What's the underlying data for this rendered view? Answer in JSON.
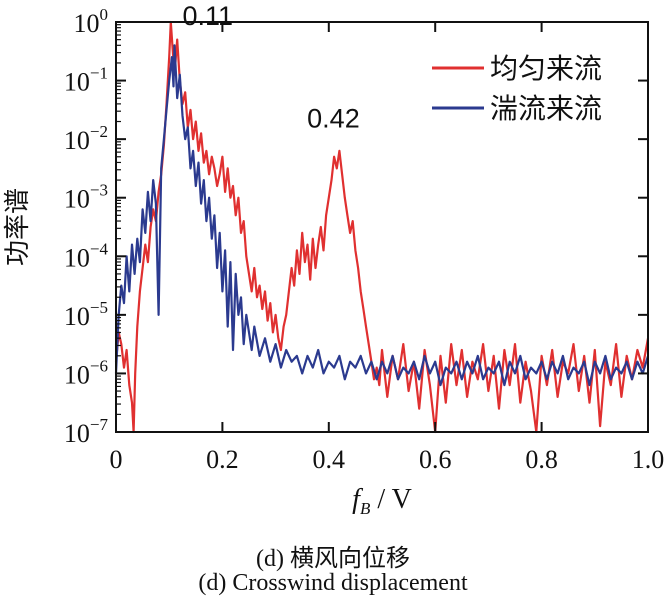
{
  "chart_data": {
    "type": "line",
    "ylabel": "功率谱",
    "xlabel_main": "f",
    "xlabel_sub": "B",
    "xlabel_unit": " / V",
    "xlim": [
      0,
      1.0
    ],
    "ylim_log10": [
      -7,
      0
    ],
    "y_scale": "log",
    "x_ticks": [
      "0",
      "0.2",
      "0.4",
      "0.6",
      "0.8",
      "1.0"
    ],
    "x_tick_values": [
      0,
      0.2,
      0.4,
      0.6,
      0.8,
      1.0
    ],
    "y_tick_exponents": [
      0,
      -1,
      -2,
      -3,
      -4,
      -5,
      -6,
      -7
    ],
    "y_tick_base": "10",
    "y_tick_exps_text": [
      "0",
      "−1",
      "−2",
      "−3",
      "−4",
      "−5",
      "−6",
      "−7"
    ],
    "grid": false,
    "legend_position": "top-right",
    "annotations": [
      {
        "text": "0.11",
        "x": 0.11,
        "y_log10": -0.05
      },
      {
        "text": "0.42",
        "x": 0.42,
        "y_log10": -1.8
      }
    ],
    "series": [
      {
        "name": "均匀来流",
        "color": "#e03030",
        "points": [
          [
            0.0,
            -5.8
          ],
          [
            0.005,
            -5.3
          ],
          [
            0.01,
            -5.5
          ],
          [
            0.015,
            -5.9
          ],
          [
            0.02,
            -5.6
          ],
          [
            0.025,
            -6.2
          ],
          [
            0.03,
            -6.5
          ],
          [
            0.033,
            -7.0
          ],
          [
            0.036,
            -6.0
          ],
          [
            0.04,
            -5.2
          ],
          [
            0.045,
            -4.6
          ],
          [
            0.05,
            -4.2
          ],
          [
            0.055,
            -3.8
          ],
          [
            0.06,
            -4.1
          ],
          [
            0.065,
            -3.5
          ],
          [
            0.07,
            -3.2
          ],
          [
            0.075,
            -3.4
          ],
          [
            0.08,
            -2.9
          ],
          [
            0.085,
            -2.6
          ],
          [
            0.09,
            -2.1
          ],
          [
            0.095,
            -1.4
          ],
          [
            0.1,
            -0.6
          ],
          [
            0.103,
            0.0
          ],
          [
            0.106,
            -0.4
          ],
          [
            0.11,
            -0.9
          ],
          [
            0.115,
            -0.3
          ],
          [
            0.12,
            -1.0
          ],
          [
            0.125,
            -1.4
          ],
          [
            0.13,
            -1.2
          ],
          [
            0.135,
            -1.8
          ],
          [
            0.14,
            -1.5
          ],
          [
            0.145,
            -2.0
          ],
          [
            0.15,
            -1.7
          ],
          [
            0.155,
            -2.2
          ],
          [
            0.16,
            -1.9
          ],
          [
            0.165,
            -2.4
          ],
          [
            0.17,
            -2.2
          ],
          [
            0.175,
            -2.6
          ],
          [
            0.18,
            -2.3
          ],
          [
            0.185,
            -2.5
          ],
          [
            0.19,
            -2.8
          ],
          [
            0.195,
            -2.6
          ],
          [
            0.2,
            -2.3
          ],
          [
            0.205,
            -2.9
          ],
          [
            0.21,
            -2.5
          ],
          [
            0.215,
            -3.0
          ],
          [
            0.22,
            -2.8
          ],
          [
            0.225,
            -3.3
          ],
          [
            0.23,
            -3.0
          ],
          [
            0.235,
            -3.6
          ],
          [
            0.24,
            -3.4
          ],
          [
            0.245,
            -4.0
          ],
          [
            0.25,
            -4.3
          ],
          [
            0.255,
            -4.6
          ],
          [
            0.26,
            -4.2
          ],
          [
            0.265,
            -4.7
          ],
          [
            0.27,
            -4.5
          ],
          [
            0.275,
            -4.9
          ],
          [
            0.28,
            -4.6
          ],
          [
            0.285,
            -5.1
          ],
          [
            0.29,
            -4.8
          ],
          [
            0.295,
            -5.3
          ],
          [
            0.3,
            -5.0
          ],
          [
            0.305,
            -5.4
          ],
          [
            0.31,
            -5.6
          ],
          [
            0.315,
            -5.2
          ],
          [
            0.32,
            -5.0
          ],
          [
            0.325,
            -4.6
          ],
          [
            0.33,
            -4.2
          ],
          [
            0.335,
            -4.5
          ],
          [
            0.34,
            -3.9
          ],
          [
            0.345,
            -4.3
          ],
          [
            0.35,
            -3.6
          ],
          [
            0.355,
            -4.1
          ],
          [
            0.36,
            -3.8
          ],
          [
            0.365,
            -4.4
          ],
          [
            0.37,
            -3.7
          ],
          [
            0.375,
            -4.2
          ],
          [
            0.38,
            -3.8
          ],
          [
            0.385,
            -3.5
          ],
          [
            0.39,
            -3.9
          ],
          [
            0.395,
            -3.3
          ],
          [
            0.4,
            -3.0
          ],
          [
            0.405,
            -2.7
          ],
          [
            0.41,
            -2.3
          ],
          [
            0.415,
            -2.5
          ],
          [
            0.42,
            -2.2
          ],
          [
            0.425,
            -2.6
          ],
          [
            0.43,
            -3.0
          ],
          [
            0.435,
            -3.3
          ],
          [
            0.44,
            -3.6
          ],
          [
            0.445,
            -3.4
          ],
          [
            0.45,
            -3.9
          ],
          [
            0.455,
            -4.2
          ],
          [
            0.46,
            -4.6
          ],
          [
            0.465,
            -4.9
          ],
          [
            0.47,
            -5.2
          ],
          [
            0.475,
            -5.5
          ],
          [
            0.48,
            -5.8
          ],
          [
            0.485,
            -6.1
          ],
          [
            0.49,
            -5.9
          ],
          [
            0.495,
            -6.2
          ],
          [
            0.5,
            -5.6
          ],
          [
            0.51,
            -6.4
          ],
          [
            0.52,
            -5.7
          ],
          [
            0.53,
            -6.1
          ],
          [
            0.54,
            -5.5
          ],
          [
            0.55,
            -6.3
          ],
          [
            0.56,
            -5.8
          ],
          [
            0.57,
            -6.6
          ],
          [
            0.58,
            -5.6
          ],
          [
            0.59,
            -6.2
          ],
          [
            0.6,
            -7.0
          ],
          [
            0.61,
            -5.7
          ],
          [
            0.62,
            -6.5
          ],
          [
            0.63,
            -5.5
          ],
          [
            0.64,
            -6.2
          ],
          [
            0.65,
            -5.6
          ],
          [
            0.66,
            -6.4
          ],
          [
            0.67,
            -5.8
          ],
          [
            0.68,
            -6.1
          ],
          [
            0.69,
            -5.5
          ],
          [
            0.7,
            -6.3
          ],
          [
            0.71,
            -5.7
          ],
          [
            0.72,
            -6.6
          ],
          [
            0.73,
            -5.6
          ],
          [
            0.74,
            -6.2
          ],
          [
            0.75,
            -5.5
          ],
          [
            0.76,
            -6.5
          ],
          [
            0.77,
            -5.8
          ],
          [
            0.78,
            -6.3
          ],
          [
            0.79,
            -7.0
          ],
          [
            0.8,
            -5.7
          ],
          [
            0.81,
            -6.2
          ],
          [
            0.82,
            -5.6
          ],
          [
            0.83,
            -6.4
          ],
          [
            0.84,
            -5.8
          ],
          [
            0.85,
            -6.0
          ],
          [
            0.86,
            -5.5
          ],
          [
            0.87,
            -6.3
          ],
          [
            0.88,
            -5.7
          ],
          [
            0.89,
            -6.5
          ],
          [
            0.9,
            -5.6
          ],
          [
            0.91,
            -6.9
          ],
          [
            0.92,
            -5.8
          ],
          [
            0.93,
            -6.2
          ],
          [
            0.94,
            -5.5
          ],
          [
            0.95,
            -6.4
          ],
          [
            0.96,
            -5.7
          ],
          [
            0.97,
            -6.1
          ],
          [
            0.98,
            -5.6
          ],
          [
            0.99,
            -5.9
          ],
          [
            1.0,
            -5.4
          ]
        ]
      },
      {
        "name": "湍流来流",
        "color": "#2b3a8f",
        "points": [
          [
            0.0,
            -6.0
          ],
          [
            0.005,
            -5.0
          ],
          [
            0.01,
            -4.5
          ],
          [
            0.015,
            -4.8
          ],
          [
            0.02,
            -4.0
          ],
          [
            0.025,
            -4.6
          ],
          [
            0.03,
            -3.8
          ],
          [
            0.035,
            -4.3
          ],
          [
            0.04,
            -3.7
          ],
          [
            0.045,
            -4.1
          ],
          [
            0.05,
            -3.2
          ],
          [
            0.055,
            -3.6
          ],
          [
            0.06,
            -2.9
          ],
          [
            0.065,
            -3.4
          ],
          [
            0.07,
            -2.7
          ],
          [
            0.075,
            -3.1
          ],
          [
            0.08,
            -5.0
          ],
          [
            0.085,
            -2.5
          ],
          [
            0.09,
            -2.0
          ],
          [
            0.095,
            -1.5
          ],
          [
            0.1,
            -1.0
          ],
          [
            0.105,
            -0.6
          ],
          [
            0.108,
            -1.1
          ],
          [
            0.11,
            -0.4
          ],
          [
            0.115,
            -1.3
          ],
          [
            0.12,
            -0.9
          ],
          [
            0.125,
            -1.6
          ],
          [
            0.13,
            -2.0
          ],
          [
            0.135,
            -1.8
          ],
          [
            0.14,
            -2.5
          ],
          [
            0.145,
            -2.2
          ],
          [
            0.15,
            -2.8
          ],
          [
            0.155,
            -2.4
          ],
          [
            0.16,
            -3.1
          ],
          [
            0.165,
            -2.7
          ],
          [
            0.17,
            -3.4
          ],
          [
            0.175,
            -3.0
          ],
          [
            0.18,
            -3.7
          ],
          [
            0.185,
            -3.3
          ],
          [
            0.19,
            -4.2
          ],
          [
            0.195,
            -3.6
          ],
          [
            0.2,
            -4.6
          ],
          [
            0.205,
            -3.9
          ],
          [
            0.21,
            -5.2
          ],
          [
            0.215,
            -4.1
          ],
          [
            0.22,
            -5.6
          ],
          [
            0.225,
            -4.3
          ],
          [
            0.23,
            -5.0
          ],
          [
            0.235,
            -4.7
          ],
          [
            0.24,
            -5.5
          ],
          [
            0.245,
            -5.0
          ],
          [
            0.25,
            -5.3
          ],
          [
            0.255,
            -5.6
          ],
          [
            0.26,
            -5.2
          ],
          [
            0.27,
            -5.7
          ],
          [
            0.28,
            -5.4
          ],
          [
            0.29,
            -5.8
          ],
          [
            0.3,
            -5.5
          ],
          [
            0.31,
            -5.9
          ],
          [
            0.32,
            -5.6
          ],
          [
            0.33,
            -5.8
          ],
          [
            0.34,
            -5.7
          ],
          [
            0.35,
            -6.0
          ],
          [
            0.36,
            -5.7
          ],
          [
            0.37,
            -5.9
          ],
          [
            0.38,
            -5.6
          ],
          [
            0.39,
            -6.0
          ],
          [
            0.4,
            -5.8
          ],
          [
            0.41,
            -5.9
          ],
          [
            0.42,
            -5.7
          ],
          [
            0.43,
            -6.1
          ],
          [
            0.44,
            -5.8
          ],
          [
            0.45,
            -5.9
          ],
          [
            0.46,
            -5.7
          ],
          [
            0.47,
            -6.0
          ],
          [
            0.48,
            -5.8
          ],
          [
            0.49,
            -6.1
          ],
          [
            0.5,
            -5.8
          ],
          [
            0.51,
            -6.0
          ],
          [
            0.52,
            -5.7
          ],
          [
            0.53,
            -6.1
          ],
          [
            0.54,
            -5.9
          ],
          [
            0.55,
            -6.0
          ],
          [
            0.56,
            -5.8
          ],
          [
            0.57,
            -6.1
          ],
          [
            0.58,
            -5.7
          ],
          [
            0.59,
            -6.0
          ],
          [
            0.6,
            -5.8
          ],
          [
            0.61,
            -6.2
          ],
          [
            0.62,
            -5.9
          ],
          [
            0.63,
            -6.0
          ],
          [
            0.64,
            -5.8
          ],
          [
            0.65,
            -6.1
          ],
          [
            0.66,
            -5.8
          ],
          [
            0.67,
            -6.0
          ],
          [
            0.68,
            -5.7
          ],
          [
            0.69,
            -6.1
          ],
          [
            0.7,
            -5.9
          ],
          [
            0.71,
            -6.0
          ],
          [
            0.72,
            -5.8
          ],
          [
            0.73,
            -6.2
          ],
          [
            0.74,
            -5.8
          ],
          [
            0.75,
            -6.0
          ],
          [
            0.76,
            -5.7
          ],
          [
            0.77,
            -6.1
          ],
          [
            0.78,
            -5.9
          ],
          [
            0.79,
            -6.0
          ],
          [
            0.8,
            -5.8
          ],
          [
            0.81,
            -6.1
          ],
          [
            0.82,
            -5.8
          ],
          [
            0.83,
            -6.0
          ],
          [
            0.84,
            -5.7
          ],
          [
            0.85,
            -6.1
          ],
          [
            0.86,
            -5.9
          ],
          [
            0.87,
            -6.0
          ],
          [
            0.88,
            -5.8
          ],
          [
            0.89,
            -6.2
          ],
          [
            0.9,
            -5.8
          ],
          [
            0.91,
            -6.0
          ],
          [
            0.92,
            -5.7
          ],
          [
            0.93,
            -6.1
          ],
          [
            0.94,
            -5.9
          ],
          [
            0.95,
            -6.0
          ],
          [
            0.96,
            -5.8
          ],
          [
            0.97,
            -6.1
          ],
          [
            0.98,
            -5.8
          ],
          [
            0.99,
            -6.0
          ],
          [
            1.0,
            -5.7
          ]
        ]
      }
    ]
  },
  "captions": {
    "cn": "(d)  横风向位移",
    "en": "(d)  Crosswind displacement"
  }
}
